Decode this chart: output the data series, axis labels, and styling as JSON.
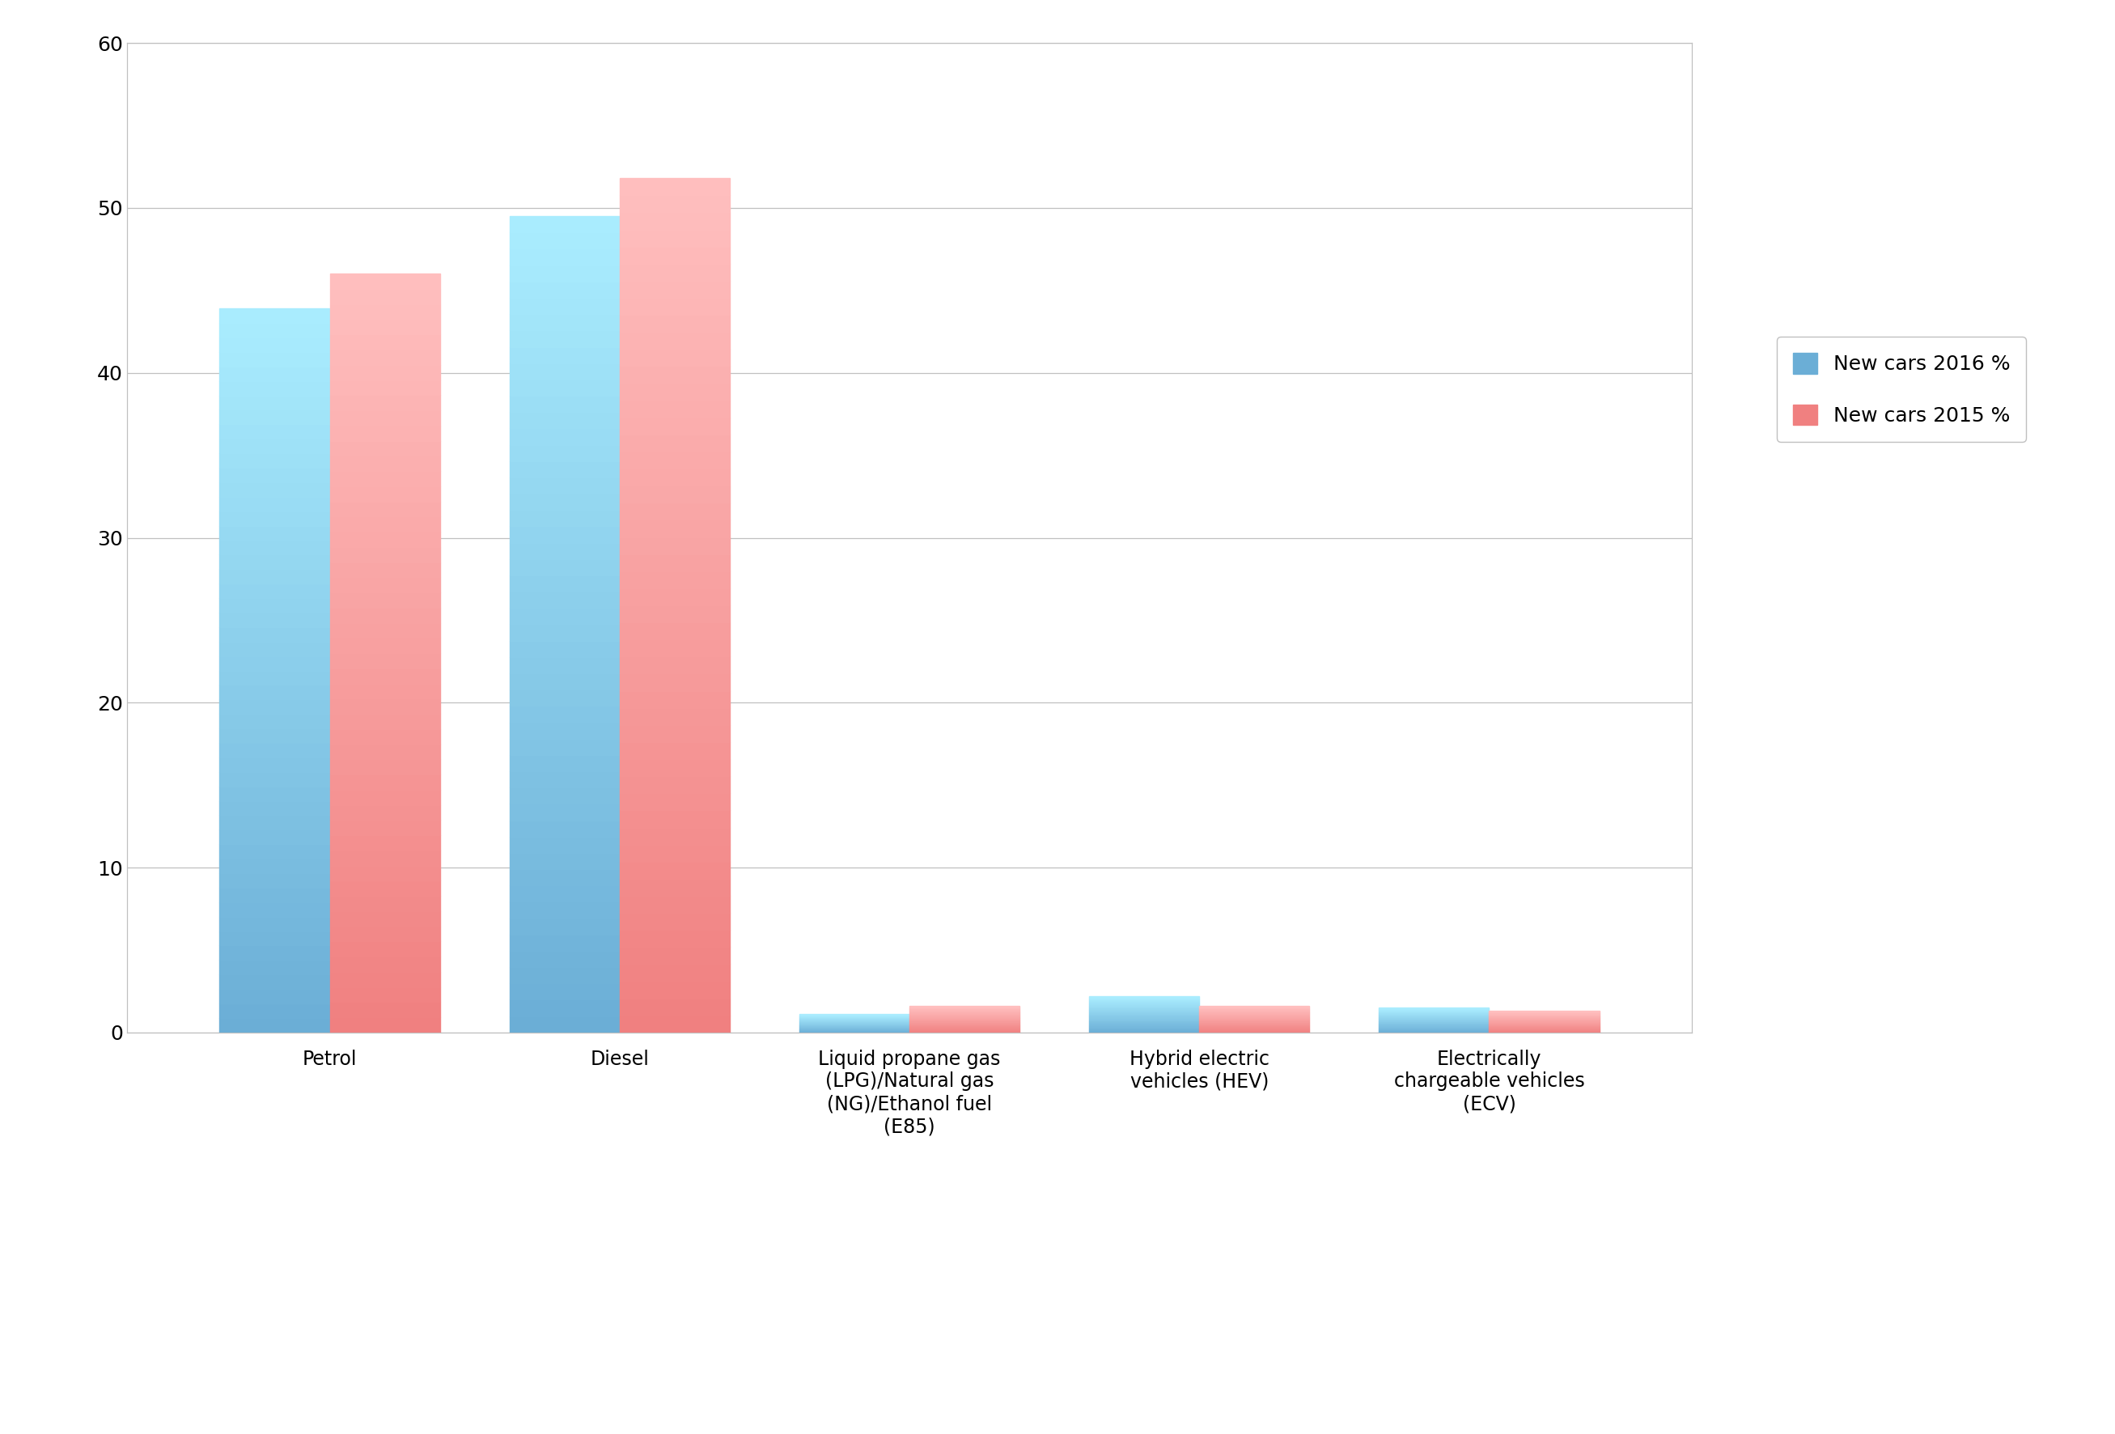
{
  "categories": [
    "Petrol",
    "Diesel",
    "Liquid propane gas\n(LPG)/Natural gas\n(NG)/Ethanol fuel\n(E85)",
    "Hybrid electric\nvehicles (HEV)",
    "Electrically\nchargeable vehicles\n(ECV)"
  ],
  "values_2016": [
    43.9,
    49.5,
    1.1,
    2.2,
    1.5
  ],
  "values_2015": [
    46.0,
    51.8,
    1.6,
    1.6,
    1.3
  ],
  "color_2016": "#6BAED6",
  "color_2015": "#F08080",
  "legend_2016": "New cars 2016 %",
  "legend_2015": "New cars 2015 %",
  "ylim": [
    0,
    60
  ],
  "yticks": [
    0,
    10,
    20,
    30,
    40,
    50,
    60
  ],
  "bar_width": 0.38,
  "grid_color": "#C0C0C0",
  "background_color": "#FFFFFF",
  "tick_fontsize": 18,
  "label_fontsize": 17,
  "legend_fontsize": 18
}
